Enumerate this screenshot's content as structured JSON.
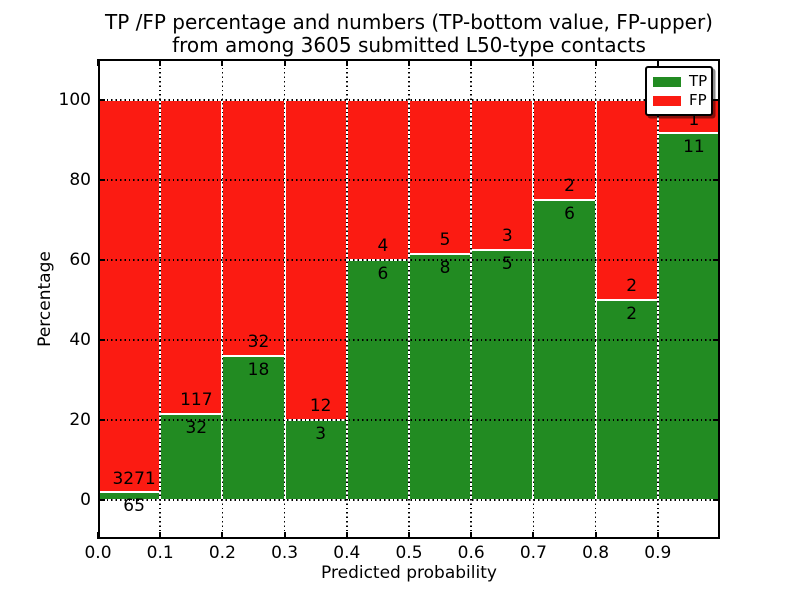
{
  "figure": {
    "title_line1": "TP /FP percentage and numbers (TP-bottom value, FP-upper)",
    "title_line2": "from among 3605 submitted L50-type contacts"
  },
  "axes": {
    "xlabel": "Predicted probability",
    "ylabel": "Percentage",
    "xtick_labels": [
      "0.0",
      "0.1",
      "0.2",
      "0.3",
      "0.4",
      "0.5",
      "0.6",
      "0.7",
      "0.8",
      "0.9"
    ],
    "ytick_values": [
      0,
      20,
      40,
      60,
      80,
      100
    ],
    "ytick_labels": [
      "0",
      "20",
      "40",
      "60",
      "80",
      "100"
    ],
    "xlim": [
      0.0,
      1.0
    ],
    "ylim": [
      -10,
      110
    ],
    "grid": true
  },
  "legend": {
    "position": "upper right",
    "items": [
      {
        "label": "TP",
        "color": "#228b22"
      },
      {
        "label": "FP",
        "color": "#fb1b12"
      }
    ]
  },
  "chart_data": {
    "type": "bar",
    "stacked": true,
    "normalized_to_percent": true,
    "title": "TP /FP percentage and numbers (TP-bottom value, FP-upper) from among 3605 submitted L50-type contacts",
    "xlabel": "Predicted probability",
    "ylabel": "Percentage",
    "bin_width": 0.1,
    "bin_starts": [
      0.0,
      0.1,
      0.2,
      0.3,
      0.4,
      0.5,
      0.6,
      0.7,
      0.8,
      0.9
    ],
    "series": [
      {
        "name": "TP",
        "color": "#228b22",
        "counts": [
          65,
          32,
          18,
          3,
          6,
          8,
          5,
          6,
          2,
          11
        ]
      },
      {
        "name": "FP",
        "color": "#fb1b12",
        "counts": [
          3271,
          117,
          32,
          12,
          4,
          5,
          3,
          2,
          2,
          1
        ]
      }
    ],
    "tp_percent": [
      1.9,
      21.5,
      36.0,
      20.0,
      60.0,
      61.5,
      62.5,
      75.0,
      50.0,
      91.7
    ],
    "total_contacts": 3605
  }
}
